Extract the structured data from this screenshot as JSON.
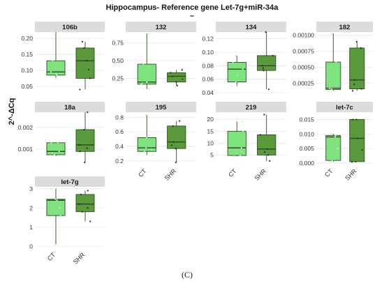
{
  "title": "Hippocampus- Reference gene Let-7g+miR-34a",
  "title_sub": "–",
  "caption": "(C)",
  "colors": {
    "CT": "#7ee37e",
    "SHR": "#5b9a3c",
    "outline": "#2e4a23",
    "point_CT": "#b8f0b8",
    "point_SHR": "#1e2e16"
  },
  "chart_data": {
    "type": "box",
    "ylabel": "2^-ΔCq",
    "groups": [
      "CT",
      "SHR"
    ],
    "panels": [
      {
        "name": "106b",
        "ylim": [
          0.03,
          0.22
        ],
        "yticks": [
          0.05,
          0.1,
          0.15,
          0.2
        ],
        "ytick_labels": [
          "0.05",
          "0.10",
          "0.15",
          "0.20"
        ],
        "boxes": [
          {
            "group": "CT",
            "min": 0.075,
            "q1": 0.085,
            "median": 0.095,
            "q3": 0.13,
            "max": 0.22
          },
          {
            "group": "SHR",
            "min": 0.04,
            "q1": 0.075,
            "median": 0.13,
            "q3": 0.17,
            "max": 0.19
          }
        ]
      },
      {
        "name": "132",
        "ylim": [
          0.05,
          0.9
        ],
        "yticks": [
          0.25,
          0.5,
          0.75
        ],
        "ytick_labels": [
          "0.25",
          "0.50",
          "0.75"
        ],
        "boxes": [
          {
            "group": "CT",
            "min": 0.1,
            "q1": 0.17,
            "median": 0.2,
            "q3": 0.45,
            "max": 0.88
          },
          {
            "group": "SHR",
            "min": 0.15,
            "q1": 0.2,
            "median": 0.28,
            "q3": 0.33,
            "max": 0.37
          }
        ]
      },
      {
        "name": "134",
        "ylim": [
          0.04,
          0.13
        ],
        "yticks": [
          0.04,
          0.06,
          0.08,
          0.1,
          0.12
        ],
        "ytick_labels": [
          "0.04",
          "0.06",
          "0.08",
          "0.10",
          "0.12"
        ],
        "boxes": [
          {
            "group": "CT",
            "min": 0.05,
            "q1": 0.056,
            "median": 0.075,
            "q3": 0.085,
            "max": 0.095
          },
          {
            "group": "SHR",
            "min": 0.045,
            "q1": 0.073,
            "median": 0.08,
            "q3": 0.095,
            "max": 0.13
          }
        ]
      },
      {
        "name": "182",
        "ylim": [
          0.0001,
          0.00105
        ],
        "yticks": [
          0.00025,
          0.0005,
          0.00075,
          0.001
        ],
        "ytick_labels": [
          "0.00025",
          "0.00050",
          "0.00075",
          "0.00100"
        ],
        "boxes": [
          {
            "group": "CT",
            "min": 0.00013,
            "q1": 0.00015,
            "median": 0.00017,
            "q3": 0.00058,
            "max": 0.00103
          },
          {
            "group": "SHR",
            "min": 0.00013,
            "q1": 0.00016,
            "median": 0.0003,
            "q3": 0.0008,
            "max": 0.0009
          }
        ]
      },
      {
        "name": "18a",
        "ylim": [
          0.0003,
          0.0027
        ],
        "yticks": [
          0.001,
          0.002
        ],
        "ytick_labels": [
          "0.001",
          "0.002"
        ],
        "boxes": [
          {
            "group": "CT",
            "min": 0.0007,
            "q1": 0.00075,
            "median": 0.0009,
            "q3": 0.0013,
            "max": 0.0013
          },
          {
            "group": "SHR",
            "min": 0.0004,
            "q1": 0.0009,
            "median": 0.0012,
            "q3": 0.0019,
            "max": 0.0027
          }
        ]
      },
      {
        "name": "195",
        "ylim": [
          0.15,
          0.87
        ],
        "yticks": [
          0.2,
          0.4,
          0.6,
          0.8
        ],
        "ytick_labels": [
          "0.2",
          "0.4",
          "0.6",
          "0.8"
        ],
        "boxes": [
          {
            "group": "CT",
            "min": 0.28,
            "q1": 0.33,
            "median": 0.38,
            "q3": 0.52,
            "max": 0.83
          },
          {
            "group": "SHR",
            "min": 0.18,
            "q1": 0.37,
            "median": 0.46,
            "q3": 0.68,
            "max": 0.75
          }
        ]
      },
      {
        "name": "219",
        "ylim": [
          1,
          23
        ],
        "yticks": [
          5,
          10,
          15,
          20
        ],
        "ytick_labels": [
          "5",
          "10",
          "15",
          "20"
        ],
        "boxes": [
          {
            "group": "CT",
            "min": 4.5,
            "q1": 4.8,
            "median": 8,
            "q3": 15,
            "max": 19
          },
          {
            "group": "SHR",
            "min": 2.5,
            "q1": 5,
            "median": 7.5,
            "q3": 13.5,
            "max": 22
          }
        ]
      },
      {
        "name": "let-7c",
        "ylim": [
          -0.0005,
          0.0175
        ],
        "yticks": [
          0.0,
          0.005,
          0.01,
          0.015
        ],
        "ytick_labels": [
          "0.000",
          "0.005",
          "0.010",
          "0.015"
        ],
        "boxes": [
          {
            "group": "CT",
            "min": 0.0005,
            "q1": 0.0009,
            "median": 0.009,
            "q3": 0.0095,
            "max": 0.0101
          },
          {
            "group": "SHR",
            "min": 0.0004,
            "q1": 0.0005,
            "median": 0.0085,
            "q3": 0.015,
            "max": 0.015
          }
        ]
      },
      {
        "name": "let-7g",
        "ylim": [
          -0.1,
          3.1
        ],
        "yticks": [
          0,
          1,
          2,
          3
        ],
        "ytick_labels": [
          "0",
          "1",
          "2",
          "3"
        ],
        "boxes": [
          {
            "group": "CT",
            "min": 0.1,
            "q1": 1.6,
            "median": 2.4,
            "q3": 2.45,
            "max": 3.0
          },
          {
            "group": "SHR",
            "min": 1.3,
            "q1": 1.8,
            "median": 2.2,
            "q3": 2.7,
            "max": 2.9
          }
        ]
      }
    ]
  }
}
